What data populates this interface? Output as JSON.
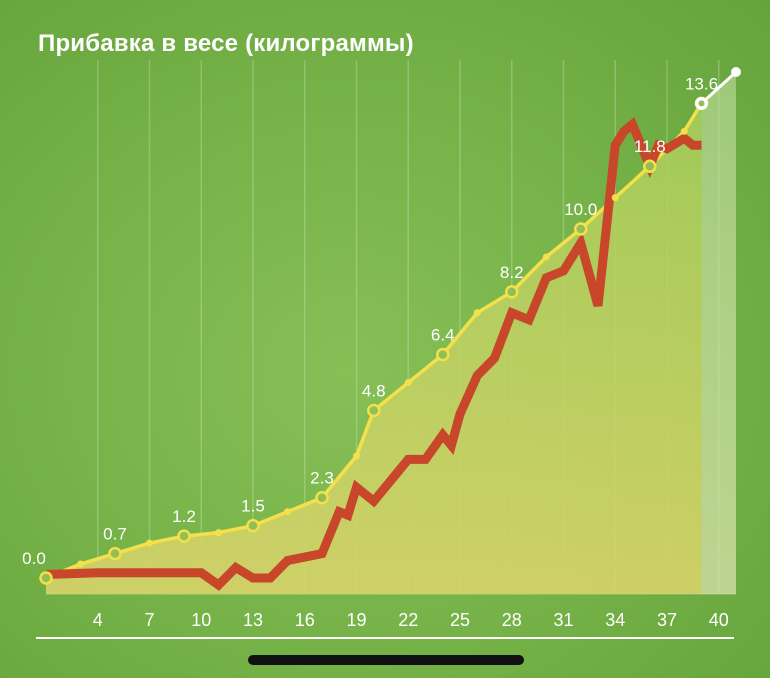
{
  "chart_data": {
    "type": "line",
    "title": "Прибавка в весе (килограммы)",
    "x_ticks": [
      4,
      7,
      10,
      13,
      16,
      19,
      22,
      25,
      28,
      31,
      34,
      37,
      40
    ],
    "xlim": [
      1,
      41
    ],
    "ylim": [
      0,
      14.5
    ],
    "grid": "vertical",
    "series": [
      {
        "role": "reference",
        "color": "#f4e04a",
        "x": [
          1,
          3,
          5,
          7,
          9,
          11,
          13,
          15,
          17,
          19,
          20,
          22,
          24,
          26,
          28,
          30,
          32,
          34,
          36,
          38,
          39
        ],
        "y": [
          0.0,
          0.4,
          0.7,
          1.0,
          1.2,
          1.3,
          1.5,
          1.9,
          2.3,
          3.5,
          4.8,
          5.6,
          6.4,
          7.6,
          8.2,
          9.2,
          10.0,
          10.9,
          11.8,
          12.8,
          13.6
        ],
        "labels": [
          {
            "x": 1,
            "y": 0.0,
            "text": "0.0"
          },
          {
            "x": 5,
            "y": 0.7,
            "text": "0.7"
          },
          {
            "x": 9,
            "y": 1.2,
            "text": "1.2"
          },
          {
            "x": 13,
            "y": 1.5,
            "text": "1.5"
          },
          {
            "x": 17,
            "y": 2.3,
            "text": "2.3"
          },
          {
            "x": 20,
            "y": 4.8,
            "text": "4.8"
          },
          {
            "x": 24,
            "y": 6.4,
            "text": "6.4"
          },
          {
            "x": 28,
            "y": 8.2,
            "text": "8.2"
          },
          {
            "x": 32,
            "y": 10.0,
            "text": "10.0"
          },
          {
            "x": 36,
            "y": 11.8,
            "text": "11.8"
          },
          {
            "x": 39,
            "y": 13.6,
            "text": "13.6"
          }
        ]
      },
      {
        "role": "future",
        "color": "#ffffff",
        "x": [
          39,
          41
        ],
        "y": [
          13.6,
          14.5
        ]
      },
      {
        "role": "actual",
        "color": "#c8462a",
        "x": [
          1,
          4,
          7,
          10,
          11,
          12,
          13,
          14,
          15,
          16,
          17,
          18,
          18.5,
          19,
          20,
          21,
          22,
          23,
          24,
          24.5,
          25,
          26,
          27,
          28,
          29,
          30,
          31,
          32,
          33,
          34,
          34.5,
          35,
          36,
          36.5,
          37,
          38,
          38.5,
          39
        ],
        "y": [
          0.1,
          0.15,
          0.15,
          0.15,
          -0.2,
          0.3,
          0.0,
          0.0,
          0.5,
          0.6,
          0.7,
          1.9,
          1.8,
          2.6,
          2.2,
          2.8,
          3.4,
          3.4,
          4.1,
          3.8,
          4.7,
          5.8,
          6.3,
          7.6,
          7.4,
          8.6,
          8.8,
          9.6,
          7.8,
          12.4,
          12.8,
          13.0,
          11.8,
          12.4,
          12.3,
          12.6,
          12.4,
          12.4
        ]
      }
    ]
  }
}
